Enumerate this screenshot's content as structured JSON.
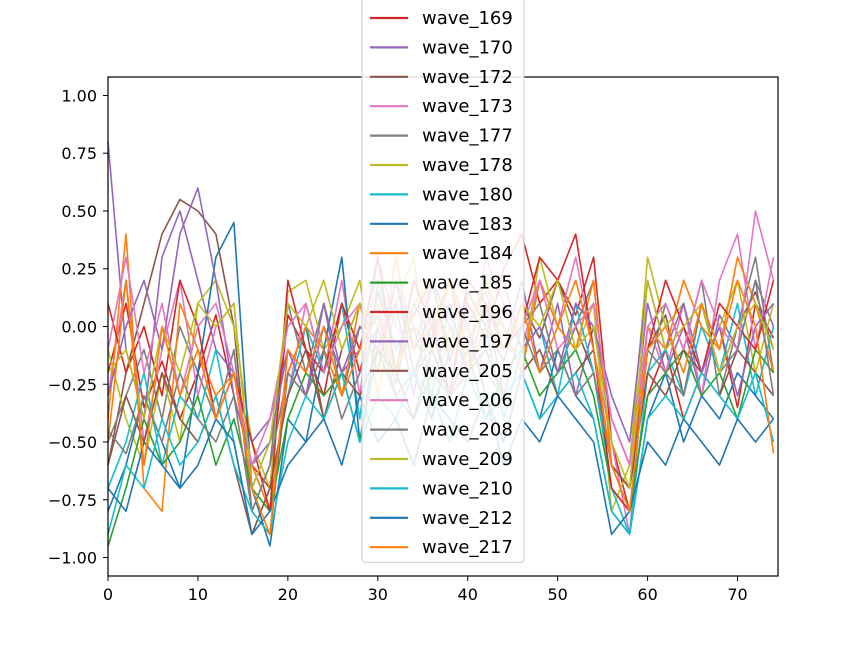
{
  "chart_data": {
    "type": "line",
    "title": "",
    "xlabel": "",
    "ylabel": "",
    "xlim": [
      0,
      74.5
    ],
    "ylim": [
      -1.08,
      1.08
    ],
    "xticks": [
      0,
      10,
      20,
      30,
      40,
      50,
      60,
      70
    ],
    "yticks": [
      -1.0,
      -0.75,
      -0.5,
      -0.25,
      0.0,
      0.25,
      0.5,
      0.75,
      1.0
    ],
    "xtick_labels": [
      "0",
      "10",
      "20",
      "30",
      "40",
      "50",
      "60",
      "70"
    ],
    "ytick_labels": [
      "−1.00",
      "−0.75",
      "−0.50",
      "−0.25",
      "0.00",
      "0.25",
      "0.50",
      "0.75",
      "1.00"
    ],
    "grid": false,
    "legend_position": "top-center",
    "colors": [
      "#d62728",
      "#9467bd",
      "#8c564b",
      "#e377c2",
      "#7f7f7f",
      "#bcbd22",
      "#17becf",
      "#1f77b4",
      "#ff7f0e",
      "#2ca02c",
      "#d62728",
      "#9467bd",
      "#8c564b",
      "#e377c2",
      "#7f7f7f",
      "#bcbd22",
      "#17becf",
      "#1f77b4",
      "#ff7f0e"
    ],
    "x": [
      0,
      2,
      4,
      6,
      8,
      10,
      12,
      14,
      16,
      18,
      20,
      22,
      24,
      26,
      28,
      30,
      32,
      34,
      36,
      38,
      40,
      42,
      44,
      46,
      48,
      50,
      52,
      54,
      56,
      58,
      60,
      62,
      64,
      66,
      68,
      70,
      72,
      74
    ],
    "series": [
      {
        "name": "wave_169",
        "values": [
          -0.2,
          0.1,
          -0.35,
          -0.15,
          -0.4,
          -0.2,
          0.05,
          -0.3,
          -0.6,
          -0.7,
          0.05,
          -0.1,
          -0.3,
          0.1,
          -0.2,
          0.15,
          -0.1,
          0.05,
          0.2,
          -0.15,
          0.1,
          -0.05,
          0.25,
          0.4,
          0.1,
          0.2,
          0.05,
          0.3,
          -0.5,
          -0.8,
          -0.3,
          -0.1,
          -0.4,
          -0.2,
          0.0,
          -0.35,
          0.1,
          -0.05
        ]
      },
      {
        "name": "wave_170",
        "values": [
          0.8,
          -0.1,
          -0.4,
          0.3,
          0.5,
          0.2,
          -0.1,
          -0.2,
          -0.5,
          -0.4,
          -0.1,
          -0.3,
          0.0,
          -0.2,
          -0.1,
          0.05,
          -0.25,
          0.1,
          -0.05,
          0.2,
          0.0,
          0.15,
          -0.1,
          0.2,
          -0.2,
          0.1,
          -0.3,
          0.0,
          -0.4,
          -0.6,
          0.1,
          -0.2,
          0.0,
          -0.3,
          0.05,
          -0.1,
          0.2,
          0.0
        ]
      },
      {
        "name": "wave_172",
        "values": [
          -0.6,
          -0.2,
          0.1,
          0.4,
          0.55,
          0.5,
          0.4,
          0.0,
          -0.8,
          -0.9,
          -0.2,
          0.0,
          -0.4,
          -0.1,
          0.1,
          -0.2,
          0.2,
          -0.1,
          0.05,
          -0.3,
          0.15,
          0.0,
          -0.15,
          0.1,
          -0.05,
          0.2,
          0.0,
          -0.2,
          -0.6,
          -0.7,
          -0.1,
          0.05,
          -0.3,
          0.1,
          -0.2,
          0.0,
          0.15,
          -0.1
        ]
      },
      {
        "name": "wave_173",
        "values": [
          -0.3,
          0.2,
          -0.5,
          -0.1,
          0.2,
          -0.3,
          0.0,
          0.1,
          -0.7,
          -0.5,
          -0.3,
          0.1,
          -0.2,
          0.2,
          -0.3,
          0.3,
          0.0,
          -0.1,
          0.2,
          0.05,
          -0.2,
          0.3,
          0.1,
          -0.1,
          0.2,
          0.0,
          0.3,
          -0.1,
          -0.5,
          -0.9,
          0.0,
          -0.2,
          0.1,
          -0.3,
          0.2,
          0.4,
          -0.1,
          0.3
        ]
      },
      {
        "name": "wave_177",
        "values": [
          -0.5,
          -0.3,
          -0.1,
          -0.4,
          0.0,
          -0.2,
          -0.4,
          -0.1,
          -0.8,
          -0.6,
          0.1,
          -0.2,
          0.1,
          -0.3,
          0.0,
          -0.1,
          0.2,
          -0.2,
          0.0,
          0.1,
          -0.2,
          0.1,
          -0.3,
          0.0,
          0.1,
          -0.2,
          0.0,
          0.2,
          -0.6,
          -0.7,
          -0.2,
          0.1,
          -0.1,
          0.2,
          -0.3,
          0.0,
          0.3,
          -0.2
        ]
      },
      {
        "name": "wave_178",
        "values": [
          -0.1,
          -0.4,
          -0.6,
          -0.2,
          -0.5,
          0.1,
          0.2,
          0.0,
          -0.5,
          -0.7,
          0.15,
          0.2,
          -0.1,
          0.0,
          0.2,
          -0.3,
          0.1,
          0.3,
          -0.4,
          0.0,
          -0.1,
          0.2,
          0.0,
          -0.2,
          0.3,
          0.0,
          -0.1,
          0.1,
          -0.8,
          -0.6,
          0.3,
          0.0,
          0.1,
          -0.2,
          0.0,
          0.2,
          -0.2,
          0.1
        ]
      },
      {
        "name": "wave_180",
        "values": [
          -0.7,
          -0.5,
          -0.2,
          -0.6,
          -0.3,
          -0.4,
          -0.1,
          -0.5,
          -0.9,
          -0.7,
          -0.3,
          0.0,
          -0.2,
          0.1,
          -0.4,
          0.2,
          -0.1,
          0.0,
          -0.3,
          0.1,
          -0.2,
          0.0,
          -0.4,
          -0.1,
          0.0,
          -0.3,
          0.1,
          -0.2,
          -0.7,
          -0.9,
          -0.2,
          -0.1,
          -0.3,
          0.0,
          -0.2,
          0.1,
          -0.3,
          0.0
        ]
      },
      {
        "name": "wave_183",
        "values": [
          -0.8,
          -0.6,
          -0.3,
          -0.5,
          -0.7,
          -0.2,
          0.3,
          0.45,
          -0.7,
          -0.95,
          -0.4,
          -0.5,
          -0.1,
          0.3,
          -0.5,
          0.0,
          -0.3,
          -0.2,
          -0.4,
          -0.1,
          0.0,
          -0.3,
          -0.5,
          -0.2,
          -0.4,
          -0.1,
          -0.3,
          -0.4,
          -0.8,
          -0.9,
          -0.4,
          -0.2,
          -0.5,
          -0.3,
          -0.4,
          -0.2,
          -0.3,
          -0.4
        ]
      },
      {
        "name": "wave_184",
        "values": [
          -0.4,
          0.4,
          -0.7,
          -0.8,
          0.1,
          -0.1,
          -0.3,
          -0.2,
          -0.6,
          -0.8,
          -0.2,
          0.0,
          -0.1,
          -0.3,
          0.1,
          -0.2,
          0.3,
          -0.1,
          0.0,
          0.2,
          -0.1,
          0.1,
          0.0,
          -0.2,
          0.2,
          0.0,
          -0.1,
          0.2,
          -0.6,
          -0.7,
          0.0,
          -0.1,
          0.2,
          0.0,
          -0.1,
          0.3,
          0.1,
          -0.2
        ]
      },
      {
        "name": "wave_185",
        "values": [
          -0.95,
          -0.7,
          -0.4,
          -0.6,
          -0.5,
          -0.3,
          -0.6,
          -0.4,
          -0.7,
          -0.8,
          -0.4,
          -0.2,
          -0.3,
          -0.2,
          -0.5,
          -0.1,
          -0.3,
          -0.4,
          -0.2,
          -0.3,
          -0.1,
          -0.4,
          -0.2,
          -0.1,
          -0.3,
          -0.2,
          -0.1,
          -0.3,
          -0.7,
          -0.8,
          -0.3,
          -0.2,
          -0.1,
          -0.3,
          -0.2,
          -0.4,
          -0.1,
          -0.2
        ]
      },
      {
        "name": "wave_196",
        "values": [
          0.1,
          -0.2,
          0.0,
          -0.3,
          0.2,
          0.0,
          -0.4,
          -0.2,
          -0.5,
          -0.8,
          0.2,
          -0.1,
          -0.2,
          0.1,
          -0.1,
          0.3,
          -0.2,
          0.2,
          0.0,
          -0.3,
          0.2,
          0.1,
          -0.1,
          0.0,
          0.3,
          0.2,
          0.4,
          -0.1,
          -0.7,
          -0.8,
          -0.1,
          0.2,
          0.0,
          -0.2,
          0.1,
          0.0,
          -0.1,
          0.2
        ]
      },
      {
        "name": "wave_197",
        "values": [
          -0.3,
          0.0,
          0.2,
          -0.1,
          0.4,
          0.6,
          0.2,
          -0.3,
          -0.6,
          -0.5,
          -0.1,
          -0.3,
          0.1,
          -0.2,
          0.0,
          -0.1,
          0.1,
          -0.3,
          0.2,
          0.0,
          -0.2,
          0.0,
          0.2,
          -0.1,
          0.0,
          -0.2,
          0.1,
          0.0,
          -0.3,
          -0.5,
          0.2,
          -0.1,
          0.1,
          -0.2,
          0.0,
          -0.3,
          0.0,
          0.1
        ]
      },
      {
        "name": "wave_205",
        "values": [
          -0.6,
          -0.3,
          -0.5,
          -0.2,
          -0.4,
          -0.5,
          -0.3,
          -0.6,
          -0.9,
          -0.7,
          -0.3,
          -0.1,
          -0.4,
          -0.2,
          -0.3,
          -0.1,
          -0.2,
          -0.4,
          -0.1,
          -0.3,
          -0.2,
          -0.1,
          -0.3,
          -0.2,
          -0.1,
          -0.3,
          -0.2,
          -0.1,
          -0.6,
          -0.7,
          -0.2,
          -0.3,
          -0.1,
          -0.2,
          -0.3,
          -0.1,
          -0.2,
          -0.3
        ]
      },
      {
        "name": "wave_206",
        "values": [
          -0.1,
          0.3,
          -0.2,
          0.1,
          -0.3,
          0.0,
          0.1,
          -0.2,
          -0.6,
          -0.4,
          0.0,
          0.1,
          -0.2,
          0.0,
          0.1,
          -0.1,
          0.2,
          0.0,
          -0.1,
          0.1,
          0.0,
          -0.2,
          0.1,
          0.0,
          0.2,
          -0.1,
          0.0,
          0.1,
          -0.4,
          -0.6,
          0.0,
          0.1,
          -0.1,
          0.2,
          0.0,
          -0.1,
          0.5,
          0.2
        ]
      },
      {
        "name": "wave_208",
        "values": [
          -0.45,
          -0.55,
          -0.3,
          -0.5,
          -0.2,
          -0.4,
          -0.5,
          -0.3,
          -0.8,
          -0.6,
          -0.2,
          -0.3,
          -0.1,
          -0.4,
          -0.2,
          0.0,
          -0.3,
          -0.2,
          -0.1,
          -0.3,
          -0.1,
          -0.2,
          -0.3,
          0.0,
          -0.2,
          -0.1,
          -0.3,
          -0.2,
          -0.6,
          -0.8,
          -0.1,
          -0.2,
          -0.3,
          0.1,
          -0.2,
          -0.1,
          0.2,
          -0.3
        ]
      },
      {
        "name": "wave_209",
        "values": [
          -0.2,
          -0.1,
          -0.4,
          0.0,
          -0.2,
          0.1,
          0.0,
          0.1,
          -0.7,
          -0.5,
          0.1,
          0.0,
          0.2,
          -0.1,
          0.1,
          0.0,
          -0.2,
          0.1,
          0.2,
          -0.1,
          0.0,
          0.2,
          -0.1,
          0.1,
          0.0,
          0.2,
          -0.1,
          0.0,
          -0.5,
          -0.7,
          0.2,
          -0.1,
          0.0,
          0.1,
          -0.2,
          0.0,
          0.1,
          -0.1
        ]
      },
      {
        "name": "wave_210",
        "values": [
          -0.9,
          -0.6,
          -0.7,
          -0.4,
          -0.6,
          -0.5,
          -0.3,
          -0.6,
          -0.8,
          -0.9,
          -0.5,
          -0.3,
          -0.4,
          -0.2,
          -0.5,
          -0.3,
          -0.4,
          -0.2,
          -0.3,
          -0.5,
          -0.2,
          -0.4,
          -0.3,
          -0.2,
          -0.4,
          -0.3,
          -0.2,
          -0.4,
          -0.8,
          -0.9,
          -0.4,
          -0.3,
          -0.4,
          -0.2,
          -0.3,
          -0.4,
          -0.2,
          -0.5
        ]
      },
      {
        "name": "wave_212",
        "values": [
          -0.7,
          -0.8,
          -0.5,
          -0.6,
          -0.7,
          -0.6,
          -0.4,
          -0.5,
          -0.9,
          -0.8,
          -0.6,
          -0.5,
          -0.4,
          -0.6,
          -0.3,
          -0.5,
          -0.4,
          -0.6,
          -0.3,
          -0.4,
          -0.5,
          -0.3,
          -0.6,
          -0.4,
          -0.5,
          -0.3,
          -0.4,
          -0.5,
          -0.9,
          -0.8,
          -0.5,
          -0.6,
          -0.4,
          -0.5,
          -0.6,
          -0.4,
          -0.5,
          -0.4
        ]
      },
      {
        "name": "wave_217",
        "values": [
          -0.5,
          0.2,
          -0.6,
          0.0,
          -0.3,
          -0.1,
          -0.4,
          -0.2,
          -0.7,
          -0.9,
          -0.1,
          -0.2,
          0.0,
          -0.3,
          -0.1,
          0.1,
          -0.2,
          0.0,
          -0.1,
          0.2,
          -0.2,
          0.0,
          -0.1,
          0.1,
          -0.2,
          0.0,
          0.2,
          -0.1,
          -0.6,
          -0.8,
          -0.1,
          0.0,
          -0.2,
          0.1,
          -0.1,
          0.2,
          0.0,
          -0.55
        ]
      }
    ]
  }
}
